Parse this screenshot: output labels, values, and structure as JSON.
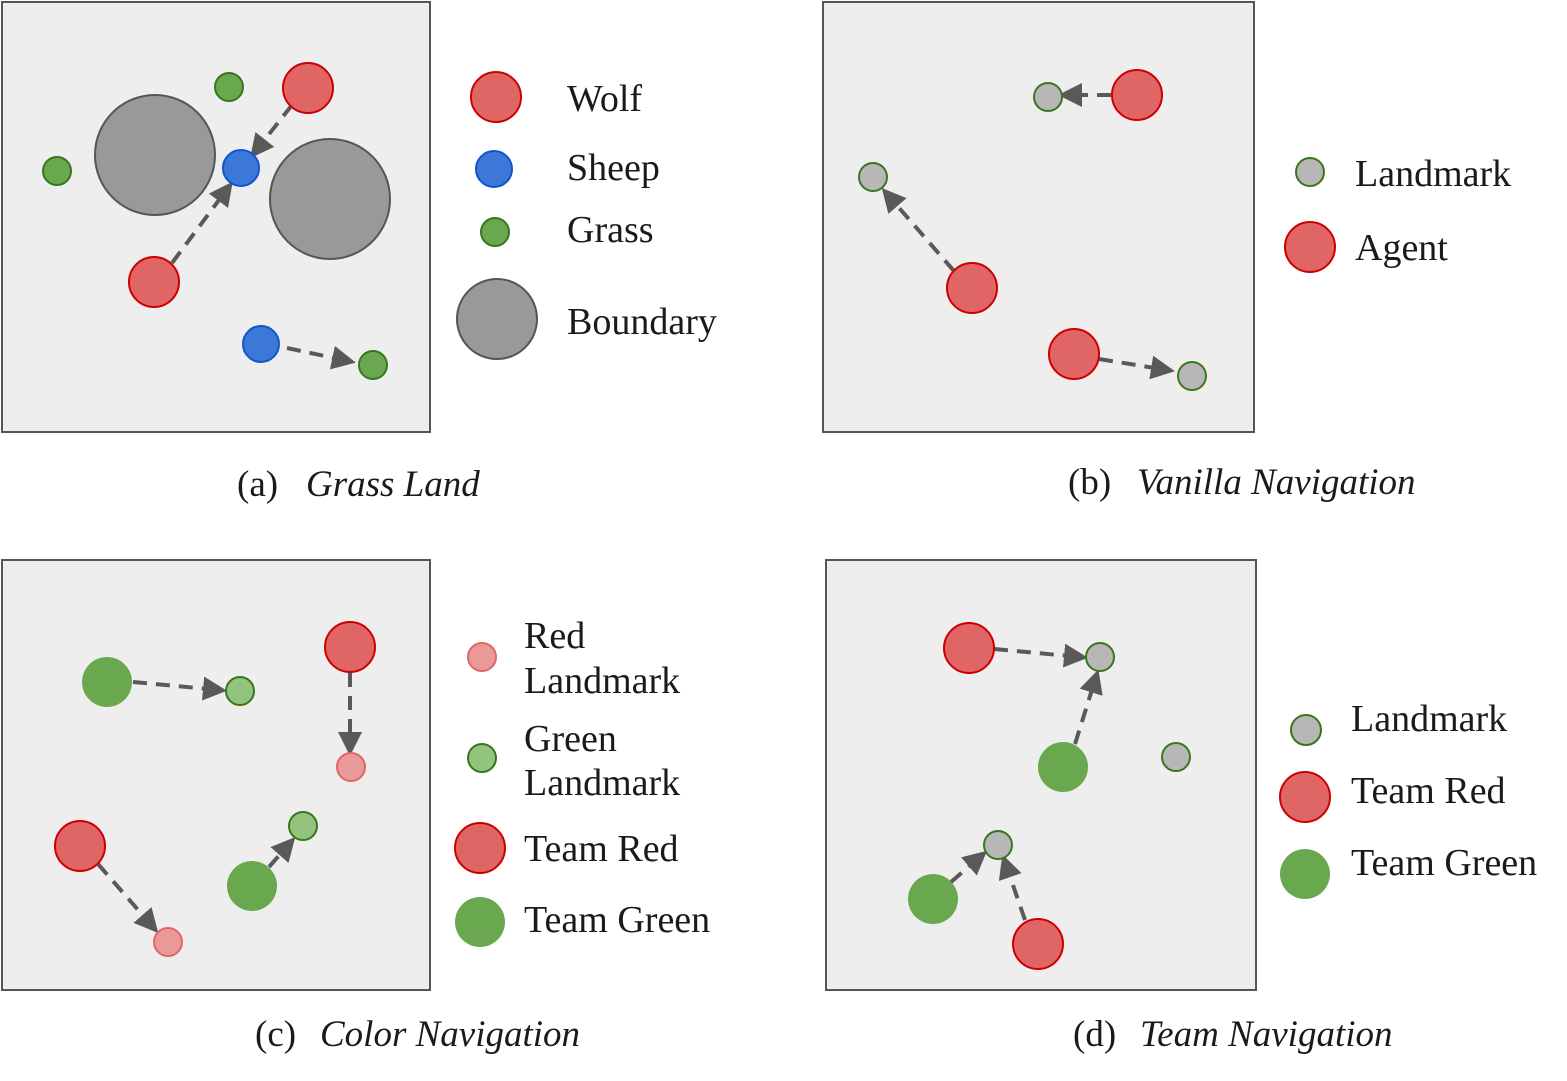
{
  "colors": {
    "panel_bg": "#eeeeee",
    "panel_border": "#555555",
    "wolf_fill": "#e06666",
    "wolf_stroke": "#cc0000",
    "sheep_fill": "#3c78d8",
    "sheep_stroke": "#1155cc",
    "grass_fill": "#6aa84f",
    "grass_stroke": "#38761d",
    "boundary_fill": "#999999",
    "boundary_stroke": "#555555",
    "landmark_fill": "#b7b7b7",
    "landmark_stroke": "#38761d",
    "red_landmark_fill": "#ea9999",
    "red_landmark_stroke": "#e06666",
    "green_landmark_fill": "#93c47d",
    "green_landmark_stroke": "#38761d",
    "arrow": "#595959"
  },
  "panels": [
    {
      "id": "a",
      "caption_num": "(a)",
      "caption_title": "Grass Land",
      "legend": [
        {
          "icon": "wolf-icon",
          "label": "Wolf"
        },
        {
          "icon": "sheep-icon",
          "label": "Sheep"
        },
        {
          "icon": "grass-icon",
          "label": "Grass"
        },
        {
          "icon": "boundary-icon",
          "label": "Boundary"
        }
      ]
    },
    {
      "id": "b",
      "caption_num": "(b)",
      "caption_title": "Vanilla Navigation",
      "legend": [
        {
          "icon": "landmark-icon",
          "label": "Landmark"
        },
        {
          "icon": "agent-icon",
          "label": "Agent"
        }
      ]
    },
    {
      "id": "c",
      "caption_num": "(c)",
      "caption_title": "Color Navigation",
      "legend": [
        {
          "icon": "red-landmark-icon",
          "label_lines": [
            "Red",
            "Landmark"
          ]
        },
        {
          "icon": "green-landmark-icon",
          "label_lines": [
            "Green",
            "Landmark"
          ]
        },
        {
          "icon": "team-red-icon",
          "label": "Team Red"
        },
        {
          "icon": "team-green-icon",
          "label": "Team Green"
        }
      ]
    },
    {
      "id": "d",
      "caption_num": "(d)",
      "caption_title": "Team Navigation",
      "legend": [
        {
          "icon": "landmark-icon",
          "label": "Landmark"
        },
        {
          "icon": "team-red-icon",
          "label": "Team Red"
        },
        {
          "icon": "team-green-icon",
          "label": "Team Green"
        }
      ]
    }
  ]
}
